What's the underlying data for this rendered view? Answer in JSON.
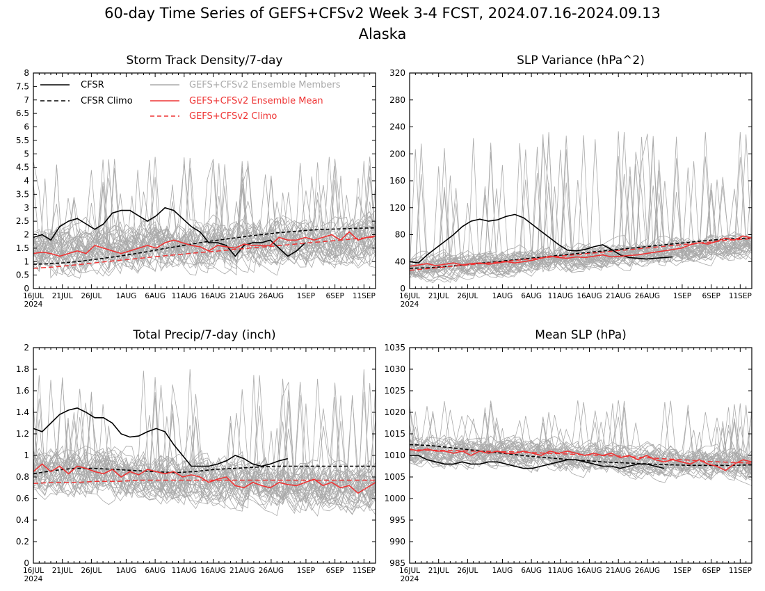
{
  "figure": {
    "title": "60-day Time Series of GEFS+CFSv2 Week 3-4 FCST, 2024.07.16-2024.09.13",
    "subtitle": "Alaska",
    "legend": {
      "cfsr": "CFSR",
      "cfsr_climo": "CFSR Climo",
      "members": "GEFS+CFSv2 Ensemble Members",
      "ens_mean": "GEFS+CFSv2 Ensemble Mean",
      "gefs_climo": "GEFS+CFSv2 Climo"
    },
    "colors": {
      "cfsr": "#000000",
      "members": "#aaaaaa",
      "ens_mean": "#ee3333",
      "gefs_climo": "#ee3333"
    },
    "x_ticks": [
      "16JUL",
      "21JUL",
      "26JUL",
      "1AUG",
      "6AUG",
      "11AUG",
      "16AUG",
      "21AUG",
      "26AUG",
      "1SEP",
      "6SEP",
      "11SEP"
    ],
    "x_year": "2024"
  },
  "chart_data": [
    {
      "type": "line",
      "title": "Storm Track Density/7-day",
      "x_range": [
        "2024-07-16",
        "2024-09-13"
      ],
      "ylim": [
        0,
        8
      ],
      "y_ticks": [
        "0",
        "0.5",
        "1",
        "1.5",
        "2",
        "2.5",
        "3",
        "3.5",
        "4",
        "4.5",
        "5",
        "5.5",
        "6",
        "6.5",
        "7",
        "7.5",
        "8"
      ],
      "legend_position": "top-left",
      "members_spread": {
        "center": [
          1.4,
          1.5,
          1.6,
          1.7,
          1.75,
          1.8
        ],
        "half_width": 1.0,
        "max_peak": 4.9
      },
      "series": [
        {
          "name": "CFSR",
          "style": "solid-black",
          "x_start": "2024-07-16",
          "values": [
            1.9,
            2.0,
            1.8,
            2.3,
            2.5,
            2.6,
            2.4,
            2.2,
            2.4,
            2.8,
            2.9,
            2.9,
            2.7,
            2.5,
            2.7,
            3.0,
            2.9,
            2.6,
            2.3,
            2.1,
            1.7,
            1.7,
            1.6,
            1.2,
            1.6,
            1.7,
            1.7,
            1.8,
            1.5,
            1.2,
            1.4,
            1.7
          ]
        },
        {
          "name": "CFSR Climo",
          "style": "dashed-black",
          "x_start": "2024-07-16",
          "values": [
            0.9,
            0.92,
            0.96,
            1.02,
            1.1,
            1.18,
            1.27,
            1.37,
            1.48,
            1.58,
            1.68,
            1.77,
            1.85,
            1.93,
            2.0,
            2.07,
            2.12,
            2.17,
            2.2,
            2.22,
            2.24,
            2.25
          ]
        },
        {
          "name": "GEFS+CFSv2 Ensemble Mean",
          "style": "solid-red",
          "x_start": "2024-07-16",
          "values": [
            1.3,
            1.35,
            1.3,
            1.2,
            1.3,
            1.4,
            1.3,
            1.6,
            1.5,
            1.4,
            1.3,
            1.4,
            1.5,
            1.6,
            1.5,
            1.7,
            1.8,
            1.7,
            1.6,
            1.55,
            1.4,
            1.6,
            1.55,
            1.5,
            1.65,
            1.6,
            1.6,
            1.6,
            1.9,
            1.8,
            1.8,
            1.9,
            1.8,
            1.9,
            2.0,
            1.8,
            2.1,
            1.8,
            1.9,
            1.95
          ]
        },
        {
          "name": "GEFS+CFSv2 Climo",
          "style": "dashed-red",
          "x_start": "2024-07-16",
          "values": [
            0.75,
            0.8,
            0.87,
            0.95,
            1.03,
            1.1,
            1.18,
            1.25,
            1.32,
            1.38,
            1.45,
            1.52,
            1.58,
            1.65,
            1.72,
            1.78,
            1.85,
            1.92
          ]
        }
      ]
    },
    {
      "type": "line",
      "title": "SLP Variance (hPa^2)",
      "x_range": [
        "2024-07-16",
        "2024-09-13"
      ],
      "ylim": [
        0,
        320
      ],
      "y_ticks": [
        "0",
        "40",
        "80",
        "120",
        "160",
        "200",
        "240",
        "280",
        "320"
      ],
      "members_spread": {
        "center": [
          30,
          35,
          42,
          50,
          58,
          65
        ],
        "half_width": 22,
        "max_peak": 235
      },
      "series": [
        {
          "name": "CFSR",
          "style": "solid-black",
          "x_start": "2024-07-16",
          "values": [
            40,
            38,
            50,
            60,
            70,
            80,
            92,
            100,
            103,
            100,
            102,
            107,
            110,
            105,
            95,
            85,
            75,
            65,
            57,
            56,
            58,
            62,
            65,
            58,
            50,
            46,
            45,
            44,
            45,
            46,
            47
          ]
        },
        {
          "name": "CFSR Climo",
          "style": "dashed-black",
          "x_start": "2024-07-16",
          "values": [
            30,
            31,
            33,
            36,
            39,
            42,
            45,
            48,
            51,
            54,
            57,
            60,
            63,
            66,
            69,
            72,
            74,
            75
          ]
        },
        {
          "name": "GEFS+CFSv2 Ensemble Mean",
          "style": "solid-red",
          "x_start": "2024-07-16",
          "values": [
            33,
            35,
            37,
            34,
            36,
            38,
            35,
            37,
            38,
            36,
            38,
            40,
            38,
            40,
            42,
            45,
            48,
            46,
            45,
            47,
            46,
            48,
            50,
            47,
            48,
            49,
            50,
            52,
            54,
            56,
            58,
            60,
            65,
            68,
            66,
            70,
            75,
            72,
            78,
            75
          ]
        },
        {
          "name": "GEFS+CFSv2 Climo",
          "style": "dashed-red",
          "x_start": "2024-07-16",
          "values": [
            27,
            30,
            33,
            36,
            39,
            42,
            45,
            48,
            51,
            54,
            57,
            60,
            63,
            66,
            69,
            72,
            74
          ]
        }
      ]
    },
    {
      "type": "line",
      "title": "Total Precip/7-day (inch)",
      "x_range": [
        "2024-07-16",
        "2024-09-13"
      ],
      "ylim": [
        0,
        2
      ],
      "y_ticks": [
        "0",
        "0.2",
        "0.4",
        "0.6",
        "0.8",
        "1",
        "1.2",
        "1.4",
        "1.6",
        "1.8",
        "2"
      ],
      "members_spread": {
        "center": [
          0.85,
          0.85,
          0.8,
          0.75,
          0.7,
          0.7
        ],
        "half_width": 0.25,
        "max_peak": 1.8
      },
      "series": [
        {
          "name": "CFSR",
          "style": "solid-black",
          "x_start": "2024-07-16",
          "values": [
            1.25,
            1.22,
            1.3,
            1.38,
            1.42,
            1.44,
            1.4,
            1.35,
            1.35,
            1.3,
            1.2,
            1.17,
            1.18,
            1.22,
            1.25,
            1.22,
            1.1,
            1.0,
            0.9,
            0.9,
            0.9,
            0.92,
            0.95,
            1.0,
            0.97,
            0.92,
            0.9,
            0.92,
            0.95,
            0.97
          ]
        },
        {
          "name": "CFSR Climo",
          "style": "dashed-black",
          "x_start": "2024-07-16",
          "values": [
            0.83,
            0.86,
            0.88,
            0.88,
            0.87,
            0.86,
            0.85,
            0.84,
            0.85,
            0.87,
            0.88,
            0.89,
            0.9,
            0.9,
            0.9,
            0.9,
            0.9,
            0.9
          ]
        },
        {
          "name": "GEFS+CFSv2 Ensemble Mean",
          "style": "solid-red",
          "x_start": "2024-07-16",
          "values": [
            0.85,
            0.92,
            0.85,
            0.9,
            0.83,
            0.9,
            0.88,
            0.85,
            0.83,
            0.87,
            0.8,
            0.85,
            0.82,
            0.87,
            0.85,
            0.83,
            0.85,
            0.8,
            0.82,
            0.8,
            0.75,
            0.78,
            0.8,
            0.72,
            0.7,
            0.75,
            0.72,
            0.7,
            0.75,
            0.73,
            0.72,
            0.75,
            0.78,
            0.72,
            0.75,
            0.7,
            0.72,
            0.65,
            0.7,
            0.75
          ]
        },
        {
          "name": "GEFS+CFSv2 Climo",
          "style": "dashed-red",
          "x_start": "2024-07-16",
          "values": [
            0.74,
            0.75,
            0.75,
            0.76,
            0.76,
            0.77,
            0.77,
            0.77,
            0.77,
            0.77,
            0.77,
            0.77,
            0.77,
            0.77,
            0.77,
            0.77,
            0.77
          ]
        }
      ]
    },
    {
      "type": "line",
      "title": "Mean SLP (hPa)",
      "x_range": [
        "2024-07-16",
        "2024-09-13"
      ],
      "ylim": [
        985,
        1035
      ],
      "y_ticks": [
        "985",
        "990",
        "995",
        "1000",
        "1005",
        "1010",
        "1015",
        "1020",
        "1025",
        "1030",
        "1035"
      ],
      "members_spread": {
        "center": [
          1011,
          1011,
          1010,
          1009,
          1008.5,
          1008
        ],
        "half_width": 4,
        "max_peak": 1023
      },
      "series": [
        {
          "name": "CFSR",
          "style": "solid-black",
          "x_start": "2024-07-16",
          "values": [
            1010,
            1010,
            1009,
            1008.5,
            1008,
            1008,
            1008.5,
            1008,
            1008,
            1008.5,
            1008.5,
            1008,
            1007.5,
            1007,
            1007,
            1007.5,
            1008,
            1008.5,
            1009,
            1009,
            1008.5,
            1008,
            1007.5,
            1007.5,
            1007,
            1007.5,
            1008,
            1008,
            1007.5,
            1007
          ]
        },
        {
          "name": "CFSR Climo",
          "style": "dashed-black",
          "x_start": "2024-07-16",
          "values": [
            1012.5,
            1012.3,
            1011.8,
            1011.3,
            1010.8,
            1010.3,
            1009.8,
            1009.4,
            1009,
            1008.7,
            1008.4,
            1008.2,
            1008,
            1007.8,
            1007.7,
            1007.7,
            1007.7,
            1007.8
          ]
        },
        {
          "name": "GEFS+CFSv2 Ensemble Mean",
          "style": "solid-red",
          "x_start": "2024-07-16",
          "values": [
            1011.5,
            1011,
            1011.5,
            1011,
            1011,
            1010.5,
            1011,
            1010,
            1011,
            1010.5,
            1011,
            1010.5,
            1010.5,
            1011,
            1010.5,
            1010,
            1011,
            1010.5,
            1011,
            1010.5,
            1010,
            1010.5,
            1010,
            1010.5,
            1009.5,
            1010,
            1009,
            1010,
            1009,
            1008.5,
            1009,
            1008.5,
            1008,
            1009,
            1008,
            1007.5,
            1006.5,
            1008,
            1009,
            1008.5
          ]
        },
        {
          "name": "GEFS+CFSv2 Climo",
          "style": "dashed-red",
          "x_start": "2024-07-16",
          "values": [
            1011.3,
            1011.2,
            1011.1,
            1011,
            1010.9,
            1010.8,
            1010.6,
            1010.4,
            1010.2,
            1010,
            1009.8,
            1009.5,
            1009.2,
            1008.9,
            1008.6,
            1008.4,
            1008.2
          ]
        }
      ]
    }
  ]
}
